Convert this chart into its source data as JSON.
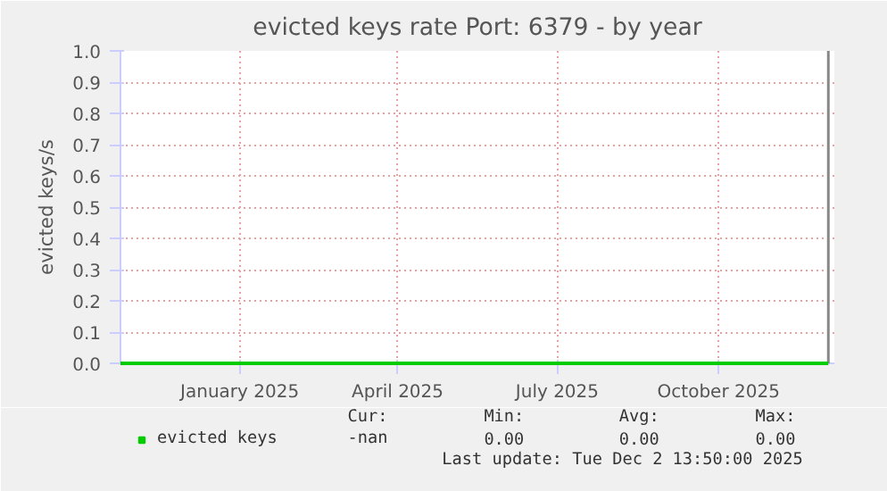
{
  "chart_data": {
    "type": "line",
    "title": "evicted keys rate Port: 6379 - by year",
    "ylabel": "evicted keys/s",
    "x": [
      "2024-10-25",
      "2025-12-02T13:50"
    ],
    "series": [
      {
        "name": "evicted keys",
        "color": "#00cc00",
        "values": [
          0,
          0
        ]
      }
    ],
    "xlim": [
      "2024-10-25",
      "2025-12-06"
    ],
    "xticks": [
      {
        "value": "2025-01-01",
        "label": "January 2025"
      },
      {
        "value": "2025-04-01",
        "label": "April 2025"
      },
      {
        "value": "2025-07-01",
        "label": "July 2025"
      },
      {
        "value": "2025-10-01",
        "label": "October 2025"
      }
    ],
    "ylim": [
      0,
      1
    ],
    "yticks": [
      {
        "value": 0,
        "label": "0.0"
      },
      {
        "value": 0.1,
        "label": "0.1"
      },
      {
        "value": 0.2,
        "label": "0.2"
      },
      {
        "value": 0.3,
        "label": "0.3"
      },
      {
        "value": 0.4,
        "label": "0.4"
      },
      {
        "value": 0.5,
        "label": "0.5"
      },
      {
        "value": 0.6,
        "label": "0.6"
      },
      {
        "value": 0.7,
        "label": "0.7"
      },
      {
        "value": 0.8,
        "label": "0.8"
      },
      {
        "value": 0.9,
        "label": "0.9"
      },
      {
        "value": 1,
        "label": "1.0"
      }
    ],
    "ref_lines": [
      {
        "axis": "x",
        "value": "2025-12-02T13:50",
        "label": null,
        "color": "#888888"
      }
    ],
    "grid": true,
    "legend": "bottom",
    "marker": "none",
    "line_style": "solid",
    "annotations": [
      "Cur:",
      "Min:",
      "Avg:",
      "Max:",
      "-nan",
      "0.00",
      "0.00",
      "0.00",
      "Last update: Tue Dec  2 13:50:00 2025"
    ]
  }
}
